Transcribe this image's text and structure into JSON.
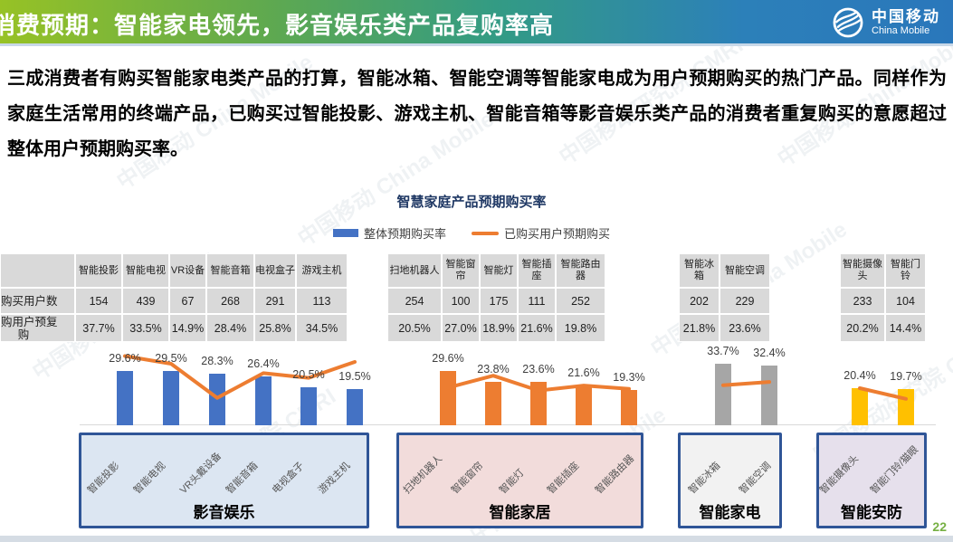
{
  "header": {
    "title": "消费预期：智能家电领先，影音娱乐类产品复购率高",
    "logo_cn": "中国移动",
    "logo_en": "China Mobile"
  },
  "intro": {
    "text": "三成消费者有购买智能家电类产品的打算，智能冰箱、智能空调等智能家电成为用户预期购买的热门产品。同样作为家庭生活常用的终端产品，已购买过智能投影、游戏主机、智能音箱等影音娱乐类产品的消费者重复购买的意愿超过整体用户预期购买率。",
    "accent_colors": {
      "header_left": "#97C225",
      "header_right": "#2A77BB"
    }
  },
  "watermark": {
    "primary": "中国移动 China Mobile",
    "secondary": "中国移动研究院 CMRI"
  },
  "legend": [
    {
      "label": "整体预期购买率",
      "type": "bar",
      "color": "#4472C4"
    },
    {
      "label": "已购买用户预期购买",
      "type": "line",
      "color": "#ED7D31"
    }
  ],
  "table": {
    "row_labels": [
      "预购买用户数",
      "已购用户预复购"
    ]
  },
  "footer": {
    "page_number": "22"
  },
  "chart_data": {
    "type": "combo-bar-line",
    "title": "智慧家庭产品预期购买率",
    "unit": "%",
    "ylim": [
      0,
      45
    ],
    "grid": false,
    "legend_position": "top",
    "series": [
      {
        "name": "整体预期购买率",
        "type": "bar"
      },
      {
        "name": "已购买用户预期购买",
        "type": "line",
        "color": "#ED7D31"
      }
    ],
    "groups": [
      {
        "category": "影音娱乐",
        "bar_color": "#4472C4",
        "box_bg": "#DCE6F2",
        "columns": [
          "智能投影",
          "智能电视",
          "VR设备",
          "智能音箱",
          "电视盒子",
          "游戏主机"
        ],
        "axis_labels": [
          "智能投影",
          "智能电视",
          "VR头戴设备",
          "智能音箱",
          "电视盒子",
          "游戏主机"
        ],
        "users": [
          154,
          439,
          67,
          268,
          291,
          113
        ],
        "bar_values": [
          29.6,
          29.5,
          28.3,
          26.4,
          20.5,
          19.5
        ],
        "line_values": [
          37.7,
          33.5,
          14.9,
          28.4,
          25.8,
          34.5
        ]
      },
      {
        "category": "智能家居",
        "bar_color": "#ED7D31",
        "box_bg": "#F2DCDB",
        "columns": [
          "扫地机器人",
          "智能窗帘",
          "智能灯",
          "智能插座",
          "智能路由器"
        ],
        "axis_labels": [
          "扫地机器人",
          "智能窗帘",
          "智能灯",
          "智能插座",
          "智能路由器"
        ],
        "users": [
          254,
          100,
          175,
          111,
          252
        ],
        "bar_values": [
          29.6,
          23.8,
          23.6,
          21.6,
          19.3
        ],
        "line_values": [
          20.5,
          27.0,
          18.9,
          21.6,
          19.8
        ]
      },
      {
        "category": "智能家电",
        "bar_color": "#A6A6A6",
        "box_bg": "#F2F2F2",
        "columns": [
          "智能冰箱",
          "智能空调"
        ],
        "axis_labels": [
          "智能冰箱",
          "智能空调"
        ],
        "users": [
          202,
          229
        ],
        "bar_values": [
          33.7,
          32.4
        ],
        "line_values": [
          21.8,
          23.6
        ]
      },
      {
        "category": "智能安防",
        "bar_color": "#FFC000",
        "box_bg": "#E6E0EC",
        "columns": [
          "智能摄像头",
          "智能门铃"
        ],
        "axis_labels": [
          "智能摄像头",
          "智能门铃/猫眼"
        ],
        "users": [
          233,
          104
        ],
        "bar_values": [
          20.4,
          19.7
        ],
        "line_values": [
          20.2,
          14.4
        ]
      }
    ]
  }
}
